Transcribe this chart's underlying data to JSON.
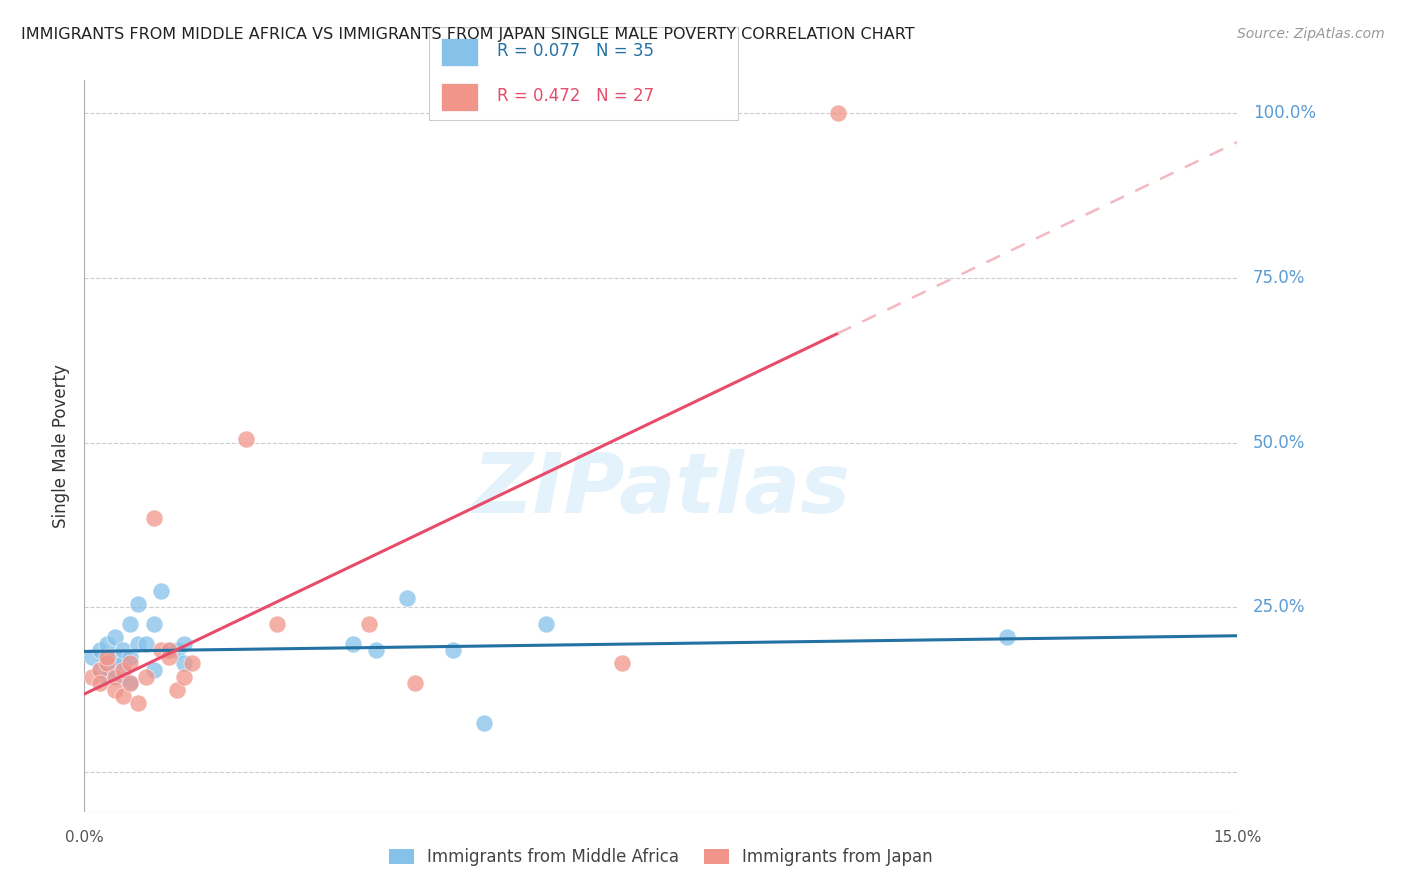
{
  "title": "IMMIGRANTS FROM MIDDLE AFRICA VS IMMIGRANTS FROM JAPAN SINGLE MALE POVERTY CORRELATION CHART",
  "source": "Source: ZipAtlas.com",
  "ylabel": "Single Male Poverty",
  "xlim": [
    0.0,
    0.15
  ],
  "ylim": [
    -0.06,
    1.05
  ],
  "background_color": "#ffffff",
  "grid_color": "#cccccc",
  "blue_color": "#85c1e9",
  "pink_color": "#f1948a",
  "blue_line_color": "#2471a3",
  "pink_line_color": "#e74c6b",
  "pink_dash_color": "#f4b8c1",
  "right_label_color": "#5b9bd5",
  "legend_blue_label": "Immigrants from Middle Africa",
  "legend_pink_label": "Immigrants from Japan",
  "R_blue": "0.077",
  "N_blue": "35",
  "R_pink": "0.472",
  "N_pink": "27",
  "blue_dots_x": [
    0.001,
    0.002,
    0.002,
    0.003,
    0.003,
    0.003,
    0.004,
    0.004,
    0.004,
    0.005,
    0.005,
    0.005,
    0.006,
    0.006,
    0.006,
    0.007,
    0.007,
    0.008,
    0.009,
    0.009,
    0.01,
    0.011,
    0.012,
    0.013,
    0.013,
    0.035,
    0.038,
    0.042,
    0.048,
    0.052,
    0.06,
    0.12
  ],
  "blue_dots_y": [
    0.175,
    0.155,
    0.185,
    0.145,
    0.165,
    0.195,
    0.155,
    0.175,
    0.205,
    0.145,
    0.165,
    0.185,
    0.135,
    0.225,
    0.175,
    0.195,
    0.255,
    0.195,
    0.155,
    0.225,
    0.275,
    0.185,
    0.185,
    0.195,
    0.165,
    0.195,
    0.185,
    0.265,
    0.185,
    0.075,
    0.225,
    0.205
  ],
  "pink_dots_x": [
    0.001,
    0.002,
    0.002,
    0.003,
    0.003,
    0.004,
    0.004,
    0.005,
    0.005,
    0.006,
    0.006,
    0.007,
    0.008,
    0.009,
    0.01,
    0.011,
    0.011,
    0.012,
    0.013,
    0.014,
    0.021,
    0.025,
    0.037,
    0.043,
    0.07,
    0.098
  ],
  "pink_dots_y": [
    0.145,
    0.155,
    0.135,
    0.165,
    0.175,
    0.145,
    0.125,
    0.155,
    0.115,
    0.135,
    0.165,
    0.105,
    0.145,
    0.385,
    0.185,
    0.185,
    0.175,
    0.125,
    0.145,
    0.165,
    0.505,
    0.225,
    0.225,
    0.135,
    0.165,
    1.0
  ],
  "watermark_text": "ZIPatlas",
  "ytick_positions": [
    0.0,
    0.25,
    0.5,
    0.75,
    1.0
  ],
  "ytick_labels_right": [
    "",
    "25.0%",
    "50.0%",
    "75.0%",
    "100.0%"
  ]
}
